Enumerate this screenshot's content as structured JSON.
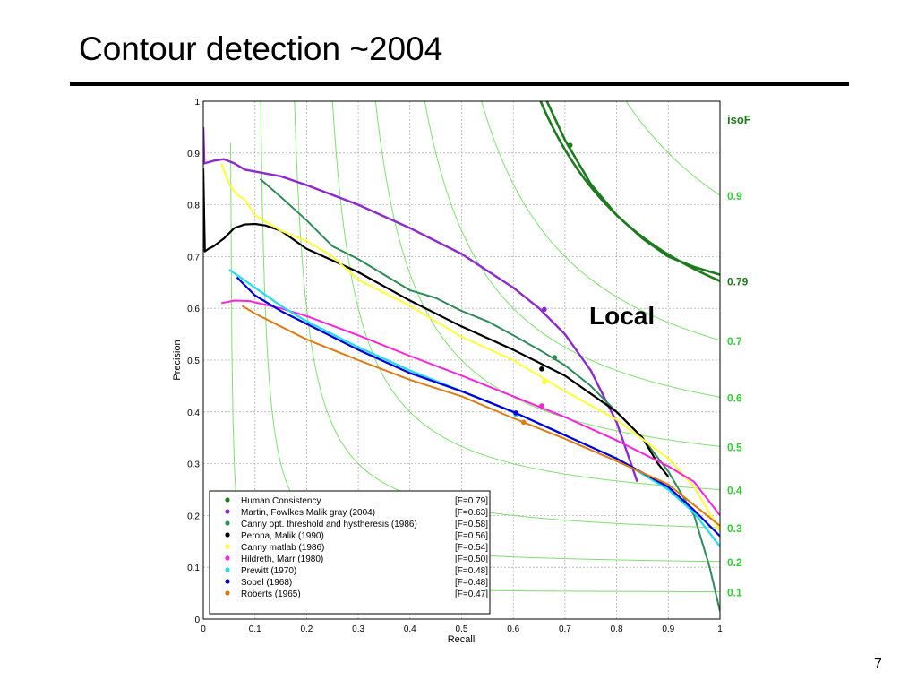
{
  "slide": {
    "title": "Contour detection ~2004",
    "page_number": "7"
  },
  "chart_data": {
    "type": "line",
    "xlabel": "Recall",
    "ylabel": "Precision",
    "xlim": [
      0,
      1
    ],
    "ylim": [
      0,
      1
    ],
    "x_ticks": [
      "0",
      "0.1",
      "0.2",
      "0.3",
      "0.4",
      "0.5",
      "0.6",
      "0.7",
      "0.8",
      "0.9",
      "1"
    ],
    "y_ticks": [
      "0",
      "0.1",
      "0.2",
      "0.3",
      "0.4",
      "0.5",
      "0.6",
      "0.7",
      "0.8",
      "0.9",
      "1"
    ],
    "grid": true,
    "legend_position": "bottom-left",
    "annotation": "Local",
    "isoF": {
      "title": "isoF",
      "levels": [
        0.1,
        0.2,
        0.3,
        0.4,
        0.5,
        0.6,
        0.7,
        0.79,
        0.9
      ],
      "labels": [
        "0.1",
        "0.2",
        "0.3",
        "0.4",
        "0.5",
        "0.6",
        "0.7",
        "0.79",
        "0.9"
      ],
      "color": "#7ee06e",
      "highlight_level": 0.79,
      "highlight_color": "#1e7a1e",
      "label_color": "#33cc33"
    },
    "series": [
      {
        "name": "Human  Consistency",
        "f": "[F=0.79]",
        "color": "#1e7a1e",
        "width": 2.6,
        "points": [
          [
            0.665,
            1.0
          ],
          [
            0.7,
            0.925
          ],
          [
            0.75,
            0.84
          ],
          [
            0.8,
            0.78
          ],
          [
            0.85,
            0.735
          ],
          [
            0.9,
            0.7
          ],
          [
            0.95,
            0.68
          ],
          [
            1.0,
            0.665
          ]
        ],
        "marker": [
          0.71,
          0.915
        ]
      },
      {
        "name": "Martin, Fowlkes Malik gray (2004)",
        "f": "[F=0.63]",
        "color": "#8c2ad0",
        "width": 2.4,
        "points": [
          [
            0.0,
            0.95
          ],
          [
            0.002,
            0.88
          ],
          [
            0.02,
            0.885
          ],
          [
            0.04,
            0.888
          ],
          [
            0.06,
            0.88
          ],
          [
            0.08,
            0.868
          ],
          [
            0.15,
            0.855
          ],
          [
            0.2,
            0.838
          ],
          [
            0.3,
            0.8
          ],
          [
            0.4,
            0.755
          ],
          [
            0.5,
            0.705
          ],
          [
            0.6,
            0.64
          ],
          [
            0.65,
            0.6
          ],
          [
            0.7,
            0.55
          ],
          [
            0.75,
            0.48
          ],
          [
            0.8,
            0.38
          ],
          [
            0.84,
            0.265
          ]
        ],
        "marker": [
          0.66,
          0.598
        ]
      },
      {
        "name": "Canny opt. threshold and hystheresis (1986)",
        "f": "[F=0.58]",
        "color": "#2e8b57",
        "width": 2.0,
        "points": [
          [
            0.11,
            0.85
          ],
          [
            0.15,
            0.815
          ],
          [
            0.2,
            0.77
          ],
          [
            0.25,
            0.72
          ],
          [
            0.3,
            0.695
          ],
          [
            0.35,
            0.665
          ],
          [
            0.4,
            0.635
          ],
          [
            0.45,
            0.62
          ],
          [
            0.5,
            0.595
          ],
          [
            0.55,
            0.575
          ],
          [
            0.6,
            0.548
          ],
          [
            0.65,
            0.52
          ],
          [
            0.7,
            0.49
          ],
          [
            0.75,
            0.45
          ],
          [
            0.8,
            0.4
          ],
          [
            0.85,
            0.35
          ],
          [
            0.9,
            0.285
          ],
          [
            0.95,
            0.2
          ],
          [
            0.98,
            0.1
          ],
          [
            1.0,
            0.015
          ]
        ],
        "marker": [
          0.68,
          0.505
        ]
      },
      {
        "name": "Perona, Malik (1990)",
        "f": "[F=0.56]",
        "color": "#000000",
        "width": 2.2,
        "points": [
          [
            0.0,
            0.87
          ],
          [
            0.003,
            0.71
          ],
          [
            0.01,
            0.715
          ],
          [
            0.02,
            0.72
          ],
          [
            0.04,
            0.735
          ],
          [
            0.06,
            0.755
          ],
          [
            0.08,
            0.762
          ],
          [
            0.1,
            0.763
          ],
          [
            0.12,
            0.76
          ],
          [
            0.15,
            0.75
          ],
          [
            0.2,
            0.715
          ],
          [
            0.3,
            0.67
          ],
          [
            0.4,
            0.615
          ],
          [
            0.5,
            0.565
          ],
          [
            0.6,
            0.52
          ],
          [
            0.7,
            0.47
          ],
          [
            0.75,
            0.435
          ],
          [
            0.8,
            0.4
          ],
          [
            0.85,
            0.35
          ],
          [
            0.88,
            0.3
          ],
          [
            0.9,
            0.275
          ]
        ],
        "marker": [
          0.655,
          0.483
        ]
      },
      {
        "name": "Canny matlab (1986)",
        "f": "[F=0.54]",
        "color": "#ffff33",
        "width": 2.0,
        "points": [
          [
            0.035,
            0.88
          ],
          [
            0.05,
            0.84
          ],
          [
            0.065,
            0.82
          ],
          [
            0.08,
            0.81
          ],
          [
            0.1,
            0.78
          ],
          [
            0.15,
            0.75
          ],
          [
            0.2,
            0.73
          ],
          [
            0.25,
            0.7
          ],
          [
            0.3,
            0.655
          ],
          [
            0.4,
            0.605
          ],
          [
            0.5,
            0.545
          ],
          [
            0.6,
            0.5
          ],
          [
            0.7,
            0.44
          ],
          [
            0.8,
            0.385
          ],
          [
            0.9,
            0.31
          ],
          [
            0.95,
            0.255
          ],
          [
            1.0,
            0.17
          ]
        ],
        "marker": [
          0.66,
          0.458
        ]
      },
      {
        "name": "Hildreth, Marr (1980)",
        "f": "[F=0.50]",
        "color": "#ff22dd",
        "width": 2.0,
        "points": [
          [
            0.035,
            0.61
          ],
          [
            0.06,
            0.615
          ],
          [
            0.09,
            0.614
          ],
          [
            0.15,
            0.6
          ],
          [
            0.2,
            0.585
          ],
          [
            0.3,
            0.548
          ],
          [
            0.4,
            0.508
          ],
          [
            0.5,
            0.47
          ],
          [
            0.6,
            0.43
          ],
          [
            0.65,
            0.41
          ],
          [
            0.7,
            0.39
          ],
          [
            0.8,
            0.345
          ],
          [
            0.9,
            0.295
          ],
          [
            0.95,
            0.265
          ],
          [
            1.0,
            0.2
          ]
        ],
        "marker": [
          0.655,
          0.412
        ]
      },
      {
        "name": "Prewitt  (1970)",
        "f": "[F=0.48]",
        "color": "#22ddee",
        "width": 2.2,
        "points": [
          [
            0.05,
            0.675
          ],
          [
            0.1,
            0.64
          ],
          [
            0.15,
            0.605
          ],
          [
            0.2,
            0.575
          ],
          [
            0.3,
            0.525
          ],
          [
            0.4,
            0.48
          ],
          [
            0.5,
            0.44
          ],
          [
            0.6,
            0.4
          ],
          [
            0.7,
            0.355
          ],
          [
            0.8,
            0.31
          ],
          [
            0.9,
            0.25
          ],
          [
            0.95,
            0.205
          ],
          [
            1.0,
            0.14
          ]
        ],
        "marker": [
          0.605,
          0.395
        ]
      },
      {
        "name": "Sobel  (1968)",
        "f": "[F=0.48]",
        "color": "#0000dd",
        "width": 2.2,
        "points": [
          [
            0.065,
            0.66
          ],
          [
            0.1,
            0.625
          ],
          [
            0.15,
            0.595
          ],
          [
            0.2,
            0.57
          ],
          [
            0.3,
            0.52
          ],
          [
            0.4,
            0.475
          ],
          [
            0.5,
            0.44
          ],
          [
            0.6,
            0.4
          ],
          [
            0.7,
            0.355
          ],
          [
            0.8,
            0.31
          ],
          [
            0.9,
            0.255
          ],
          [
            0.95,
            0.21
          ],
          [
            1.0,
            0.16
          ]
        ],
        "marker": [
          0.605,
          0.398
        ]
      },
      {
        "name": "Roberts (1965)",
        "f": "[F=0.47]",
        "color": "#e07a10",
        "width": 2.0,
        "points": [
          [
            0.075,
            0.605
          ],
          [
            0.1,
            0.59
          ],
          [
            0.15,
            0.565
          ],
          [
            0.2,
            0.54
          ],
          [
            0.3,
            0.5
          ],
          [
            0.4,
            0.462
          ],
          [
            0.5,
            0.43
          ],
          [
            0.6,
            0.388
          ],
          [
            0.7,
            0.348
          ],
          [
            0.8,
            0.305
          ],
          [
            0.9,
            0.26
          ],
          [
            0.95,
            0.22
          ],
          [
            1.0,
            0.18
          ]
        ],
        "marker": [
          0.62,
          0.38
        ]
      }
    ]
  }
}
